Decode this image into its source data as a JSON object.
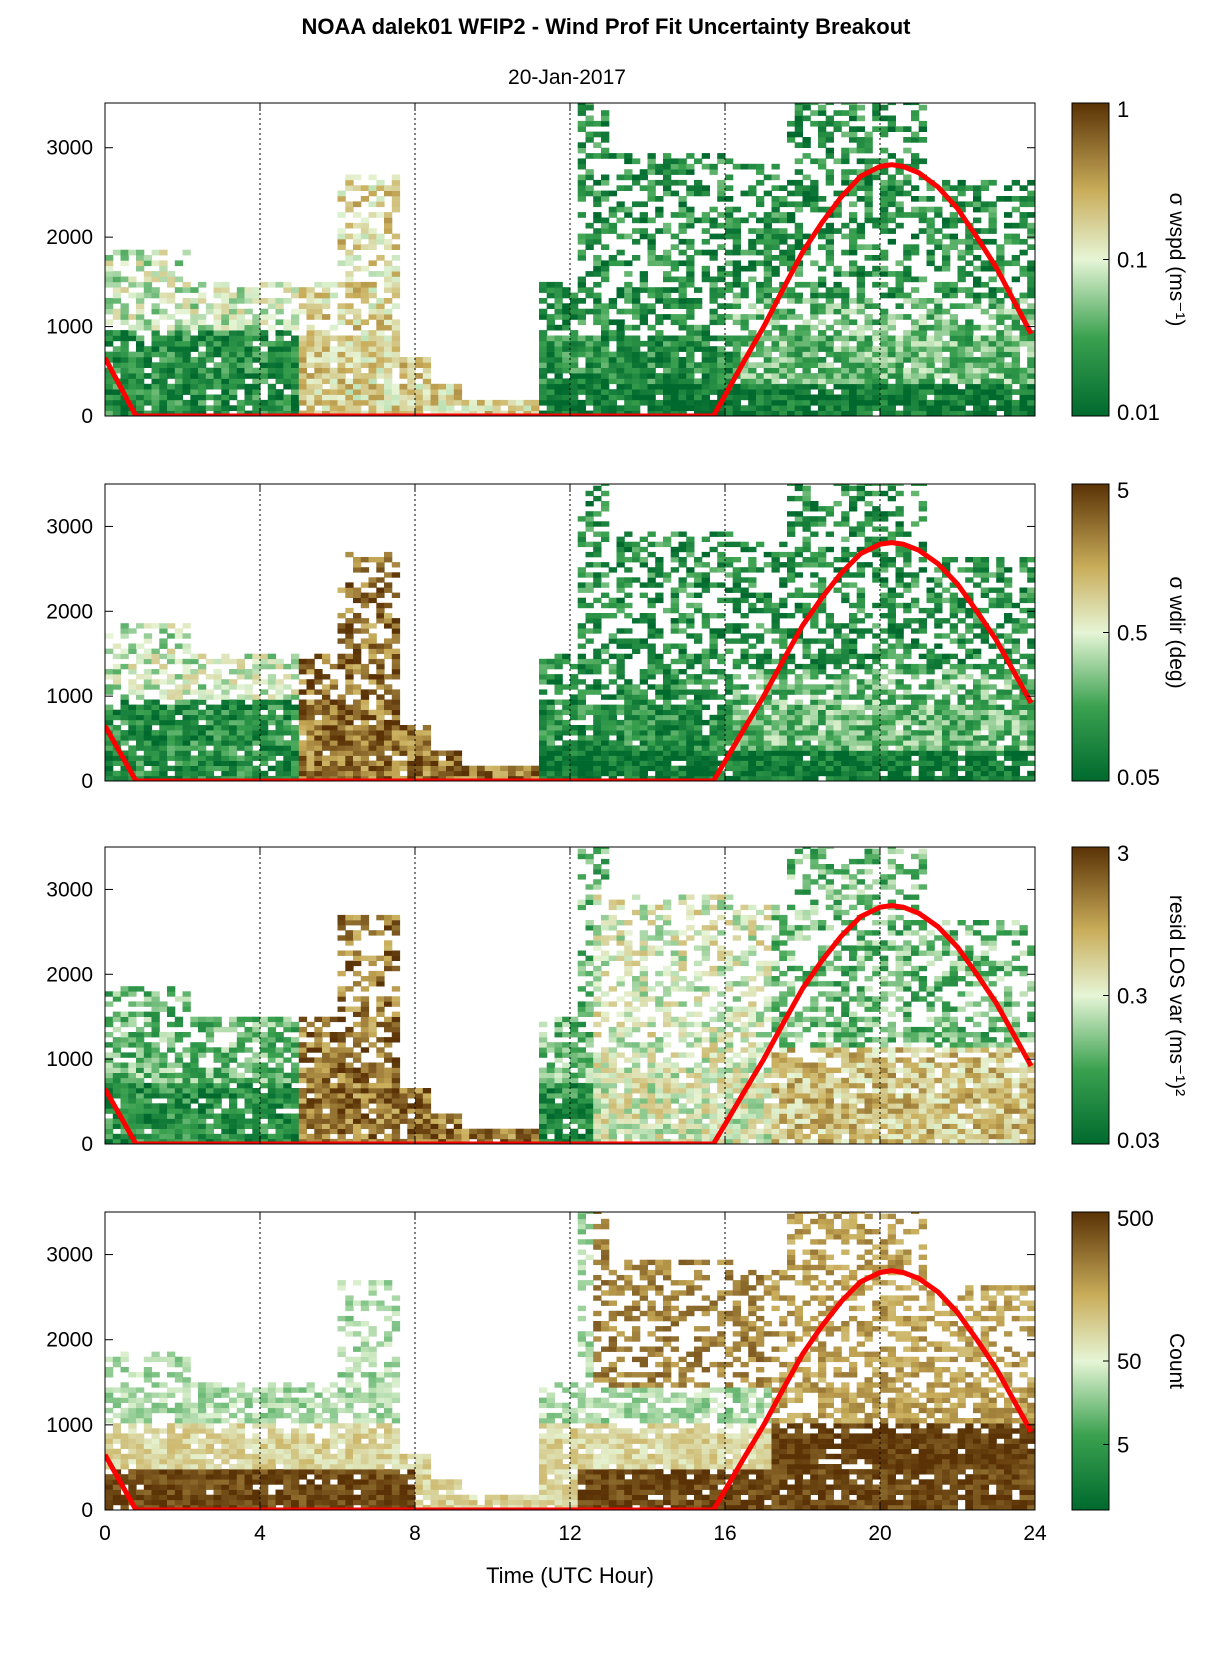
{
  "title": "NOAA dalek01 WFIP2 - Wind Prof Fit Uncertainty Breakout",
  "subtitle": "20-Jan-2017",
  "xlabel": "Time (UTC Hour)",
  "colors": {
    "dark_green": "#006a2e",
    "mid_green": "#3aa14f",
    "pale_green": "#d8f0c8",
    "tan": "#c9ad5a",
    "dark_brown": "#5a3205",
    "sun_curve": "#ff0000"
  },
  "chart_data": [
    {
      "type": "heatmap",
      "xlim": [
        0,
        24
      ],
      "ylim": [
        0,
        3500
      ],
      "xticks": [
        0,
        4,
        8,
        12,
        16,
        20,
        24
      ],
      "yticks": [
        0,
        1000,
        2000,
        3000
      ],
      "vertical_dotted_lines_at": [
        4,
        8,
        12,
        16,
        20
      ],
      "colorbar": {
        "label": "σ wspd (ms⁻¹)",
        "ticks": [
          "1",
          "0.1",
          "0.01"
        ],
        "scale": "log",
        "range": [
          0.01,
          1
        ]
      },
      "sun_curve_max": 2800
    },
    {
      "type": "heatmap",
      "xlim": [
        0,
        24
      ],
      "ylim": [
        0,
        3500
      ],
      "xticks": [
        0,
        4,
        8,
        12,
        16,
        20,
        24
      ],
      "yticks": [
        0,
        1000,
        2000,
        3000
      ],
      "vertical_dotted_lines_at": [
        4,
        8,
        12,
        16,
        20
      ],
      "colorbar": {
        "label": "σ wdir (deg)",
        "ticks": [
          "5",
          "0.5",
          "0.05"
        ],
        "scale": "log",
        "range": [
          0.05,
          5
        ]
      },
      "sun_curve_max": 2800
    },
    {
      "type": "heatmap",
      "xlim": [
        0,
        24
      ],
      "ylim": [
        0,
        3500
      ],
      "xticks": [
        0,
        4,
        8,
        12,
        16,
        20,
        24
      ],
      "yticks": [
        0,
        1000,
        2000,
        3000
      ],
      "vertical_dotted_lines_at": [
        4,
        8,
        12,
        16,
        20
      ],
      "colorbar": {
        "label": "resid LOS var (ms⁻¹)²",
        "ticks": [
          "3",
          "0.3",
          "0.03"
        ],
        "scale": "log",
        "range": [
          0.03,
          3
        ]
      },
      "sun_curve_max": 2800
    },
    {
      "type": "heatmap",
      "xlim": [
        0,
        24
      ],
      "ylim": [
        0,
        3500
      ],
      "xticks": [
        0,
        4,
        8,
        12,
        16,
        20,
        24
      ],
      "yticks": [
        0,
        1000,
        2000,
        3000
      ],
      "vertical_dotted_lines_at": [
        4,
        8,
        12,
        16,
        20
      ],
      "colorbar": {
        "label": "Count",
        "ticks": [
          "500",
          "50",
          "5"
        ],
        "scale": "log",
        "range": [
          1,
          500
        ]
      },
      "sun_curve_max": 2800
    }
  ],
  "sun_curve": {
    "x": [
      0,
      0.8,
      15.7,
      16,
      16.5,
      17,
      17.5,
      18,
      18.5,
      19,
      19.5,
      20,
      20.3,
      20.6,
      21,
      21.5,
      22,
      22.5,
      23,
      23.5,
      23.9
    ],
    "y": [
      650,
      0,
      0,
      230,
      620,
      1000,
      1420,
      1830,
      2160,
      2450,
      2680,
      2790,
      2810,
      2790,
      2720,
      2560,
      2320,
      2000,
      1660,
      1250,
      920
    ]
  }
}
